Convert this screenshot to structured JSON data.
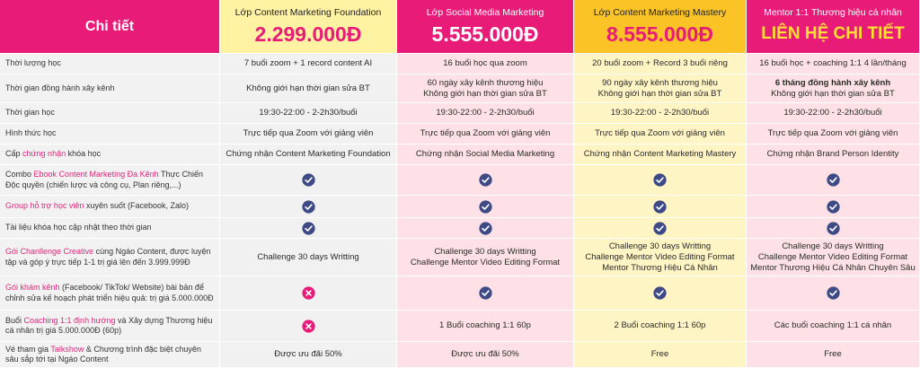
{
  "header": {
    "title": "Chi tiết",
    "plans": [
      {
        "name": "Lớp Content Marketing Foundation",
        "price": "2.299.000Đ"
      },
      {
        "name": "Lớp Social Media Marketing",
        "price": "5.555.000Đ"
      },
      {
        "name": "Lớp Content Marketing Mastery",
        "price": "8.555.000Đ"
      },
      {
        "name": "Mentor 1:1 Thương hiệu cá nhân",
        "price": "LIÊN HỆ CHI TIẾT"
      }
    ]
  },
  "rows": [
    {
      "label": {
        "pre": "Thời lượng học",
        "hl": "",
        "post": ""
      },
      "cells": [
        [
          "7 buổi zoom + 1 record content AI"
        ],
        [
          "16 buổi học qua zoom"
        ],
        [
          "20 buổi zoom + Record 3 buổi riêng"
        ],
        [
          "16 buổi học + coaching 1:1 4 lần/tháng"
        ]
      ]
    },
    {
      "label": {
        "pre": "Thời gian đồng hành xây kênh",
        "hl": "",
        "post": ""
      },
      "cells": [
        [
          "Không giới hạn thời gian sửa BT"
        ],
        [
          "60 ngày xây kênh thương hiệu",
          "Không giới hạn thời gian sửa BT"
        ],
        [
          "90 ngày xây kênh thương hiệu",
          "Không giới hạn thời gian sửa BT"
        ],
        [
          "6 tháng đồng hành xây kênh",
          "Không giới hạn thời gian sửa BT"
        ]
      ]
    },
    {
      "label": {
        "pre": "Thời gian học",
        "hl": "",
        "post": ""
      },
      "cells": [
        [
          "19:30-22:00 - 2-2h30/buổi"
        ],
        [
          "19:30-22:00 - 2-2h30/buổi"
        ],
        [
          "19:30-22:00 - 2-2h30/buổi"
        ],
        [
          "19:30-22:00 - 2-2h30/buổi"
        ]
      ]
    },
    {
      "label": {
        "pre": "Hình thức học",
        "hl": "",
        "post": ""
      },
      "cells": [
        [
          "Trực tiếp qua Zoom với giảng viên"
        ],
        [
          "Trực tiếp qua Zoom với giảng viên"
        ],
        [
          "Trực tiếp qua Zoom với giảng viên"
        ],
        [
          "Trực tiếp qua Zoom với giảng viên"
        ]
      ]
    },
    {
      "label": {
        "pre": "Cấp ",
        "hl": "chứng nhận",
        "post": " khóa học"
      },
      "cells": [
        [
          "Chứng nhận Content Marketing Foundation"
        ],
        [
          "Chứng nhận Social Media Marketing"
        ],
        [
          "Chứng nhận Content Marketing Mastery"
        ],
        [
          "Chứng nhận Brand Person Identity"
        ]
      ]
    },
    {
      "label": {
        "pre": "Combo ",
        "hl": "Ebook Content Marketing Đa Kênh",
        "post": " Thực Chiến Độc quyền (chiến lược và công cụ, Plan riêng,...)"
      },
      "cells": [
        "check",
        "check",
        "check",
        "check"
      ]
    },
    {
      "label": {
        "pre": "",
        "hl": "Group hỗ trợ học viên",
        "post": " xuyên suốt (Facebook, Zalo)"
      },
      "cells": [
        "check",
        "check",
        "check",
        "check"
      ]
    },
    {
      "label": {
        "pre": "Tài liệu khóa học cập nhật theo thời gian",
        "hl": "",
        "post": ""
      },
      "cells": [
        "check",
        "check",
        "check",
        "check"
      ]
    },
    {
      "label": {
        "pre": "",
        "hl": "Gói Chanllenge Creative",
        "post": " cùng Ngáo Content, được luyện tập và góp ý trực tiếp 1-1 trị giá lên đến 3.999.999Đ"
      },
      "cells": [
        [
          "Challenge 30 days Writting"
        ],
        [
          "Challenge 30 days Writting",
          "Challenge Mentor Video Editing Format"
        ],
        [
          "Challenge 30 days Writting",
          "Challenge Mentor Video Editing Format",
          "Mentor Thương Hiệu Cá Nhân"
        ],
        [
          "Challenge 30 days Writting",
          "Challenge Mentor Video Editing Format",
          "Mentor Thương Hiệu Cá Nhân Chuyên Sâu"
        ]
      ]
    },
    {
      "label": {
        "pre": "",
        "hl": "Gói khám kênh",
        "post": " (Facebook/ TikTok/ Website) bài bản để chỉnh sửa kế hoạch phát triển hiệu quả: trị giá 5.000.000Đ"
      },
      "cells": [
        "cross",
        "check",
        "check",
        "check"
      ]
    },
    {
      "label": {
        "pre": "Buổi ",
        "hl": "Coaching 1:1 định hướng",
        "post": " và Xây dựng Thương hiệu cá nhân trị giá 5.000.000Đ (60p)"
      },
      "cells": [
        "cross",
        [
          "1 Buổi coaching 1:1 60p"
        ],
        [
          "2 Buổi coaching 1:1 60p"
        ],
        [
          "Các buổi coaching 1:1 cá nhân"
        ]
      ]
    },
    {
      "label": {
        "pre": "Vé tham gia ",
        "hl": "Talkshow",
        "post": " & Chương trình đặc biệt chuyên sâu sắp tới tại Ngáo Content"
      },
      "cells": [
        [
          "Được ưu đãi 50%"
        ],
        [
          "Được ưu đãi 50%"
        ],
        [
          "Free"
        ],
        [
          "Free"
        ]
      ]
    }
  ],
  "colors": {
    "accent": "#e81b78",
    "check": "#3d4a85",
    "cross": "#e81b78",
    "price_highlight": "#ffe033"
  },
  "icons": {
    "check": "check-circle-icon",
    "cross": "cross-circle-icon"
  }
}
